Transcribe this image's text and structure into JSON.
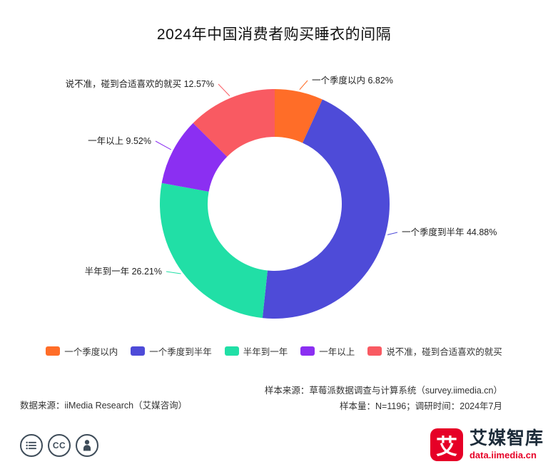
{
  "title": "2024年中国消费者购买睡衣的间隔",
  "chart_data": {
    "type": "pie",
    "subtype": "donut",
    "title": "2024年中国消费者购买睡衣的间隔",
    "legend_position": "bottom",
    "label_format": "{name} {value}%",
    "series": [
      {
        "name": "一个季度以内",
        "value": 6.82,
        "color": "#FF6D28"
      },
      {
        "name": "一个季度到半年",
        "value": 44.88,
        "color": "#4E4BD8"
      },
      {
        "name": "半年到一年",
        "value": 26.21,
        "color": "#21DFA6"
      },
      {
        "name": "一年以上",
        "value": 9.52,
        "color": "#8B2FF2"
      },
      {
        "name": "说不准，碰到合适喜欢的就买",
        "value": 12.57,
        "color": "#F95A62"
      }
    ]
  },
  "footer": {
    "source_left": "数据来源：iiMedia Research（艾媒咨询）",
    "sample_source": "样本来源：草莓派数据调查与计算系统（survey.iimedia.cn）",
    "sample_info": "样本量：N=1196；调研时间：2024年7月"
  },
  "branding": {
    "logo_glyph": "艾",
    "brand_name": "艾媒智库",
    "brand_url": "data.iimedia.cn",
    "brand_color": "#E60027",
    "icons": [
      "menu-lines-icon",
      "cc-icon",
      "person-icon"
    ]
  }
}
